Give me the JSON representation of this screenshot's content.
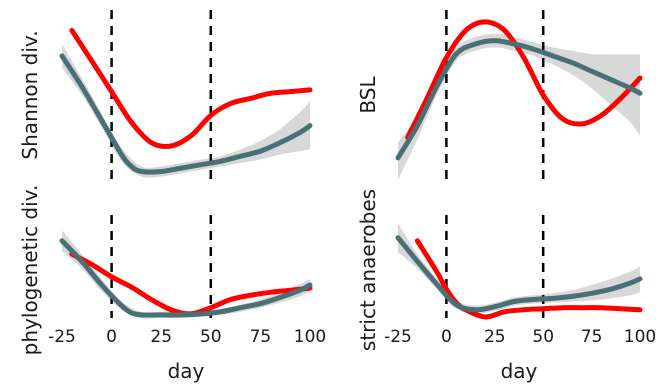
{
  "chart_data": [
    {
      "type": "line",
      "panel": "top-left",
      "ylabel": "Shannon div.",
      "xlim": [
        -25,
        100
      ],
      "vlines": [
        0,
        50
      ],
      "series": [
        {
          "color": "#ff0000",
          "x": [
            -20,
            -10,
            0,
            10,
            20,
            30,
            40,
            50,
            60,
            70,
            80,
            90,
            100
          ],
          "y": [
            0.88,
            0.7,
            0.52,
            0.34,
            0.22,
            0.2,
            0.26,
            0.38,
            0.45,
            0.48,
            0.51,
            0.52,
            0.53
          ]
        },
        {
          "color": "#4a7075",
          "x": [
            -25,
            -15,
            -5,
            5,
            10,
            15,
            25,
            35,
            45,
            55,
            65,
            75,
            85,
            95,
            100
          ],
          "y": [
            0.73,
            0.55,
            0.35,
            0.15,
            0.08,
            0.05,
            0.05,
            0.07,
            0.09,
            0.11,
            0.14,
            0.17,
            0.22,
            0.28,
            0.32
          ]
        }
      ],
      "band": {
        "x": [
          -25,
          -15,
          -5,
          5,
          15,
          25,
          35,
          45,
          55,
          65,
          75,
          85,
          95,
          100
        ],
        "upper": [
          0.8,
          0.6,
          0.39,
          0.19,
          0.08,
          0.08,
          0.1,
          0.12,
          0.14,
          0.18,
          0.23,
          0.3,
          0.4,
          0.46
        ],
        "lower": [
          0.66,
          0.5,
          0.31,
          0.11,
          0.02,
          0.02,
          0.04,
          0.06,
          0.08,
          0.1,
          0.12,
          0.15,
          0.17,
          0.18
        ]
      }
    },
    {
      "type": "line",
      "panel": "top-right",
      "ylabel": "BSL",
      "xlim": [
        -25,
        100
      ],
      "vlines": [
        0,
        50
      ],
      "series": [
        {
          "color": "#ff0000",
          "x": [
            -20,
            -10,
            0,
            10,
            20,
            30,
            40,
            50,
            60,
            70,
            80,
            90,
            100
          ],
          "y": [
            0.25,
            0.48,
            0.72,
            0.88,
            0.93,
            0.88,
            0.72,
            0.5,
            0.36,
            0.33,
            0.38,
            0.48,
            0.6
          ]
        },
        {
          "color": "#4a7075",
          "x": [
            -25,
            -15,
            -5,
            5,
            15,
            25,
            35,
            45,
            55,
            65,
            75,
            85,
            95,
            100
          ],
          "y": [
            0.13,
            0.32,
            0.55,
            0.74,
            0.8,
            0.82,
            0.8,
            0.77,
            0.73,
            0.69,
            0.64,
            0.59,
            0.54,
            0.51
          ]
        }
      ],
      "band": {
        "x": [
          -25,
          -15,
          -5,
          5,
          15,
          25,
          35,
          45,
          55,
          65,
          75,
          85,
          95,
          100
        ],
        "upper": [
          0.22,
          0.38,
          0.6,
          0.78,
          0.84,
          0.86,
          0.84,
          0.81,
          0.78,
          0.76,
          0.74,
          0.74,
          0.74,
          0.74
        ],
        "lower": [
          0.0,
          0.24,
          0.5,
          0.7,
          0.76,
          0.78,
          0.76,
          0.73,
          0.68,
          0.62,
          0.54,
          0.44,
          0.34,
          0.26
        ]
      }
    },
    {
      "type": "line",
      "panel": "bottom-left",
      "ylabel": "phylogenetic div.",
      "xlabel": "day",
      "xlim": [
        -25,
        100
      ],
      "xticks": [
        "-25",
        "0",
        "25",
        "50",
        "75",
        "100"
      ],
      "vlines": [
        0,
        50
      ],
      "series": [
        {
          "color": "#ff0000",
          "x": [
            -20,
            -10,
            0,
            10,
            20,
            30,
            40,
            50,
            60,
            70,
            80,
            90,
            100
          ],
          "y": [
            0.62,
            0.52,
            0.4,
            0.3,
            0.18,
            0.08,
            0.04,
            0.1,
            0.18,
            0.22,
            0.25,
            0.27,
            0.29
          ]
        },
        {
          "color": "#4a7075",
          "x": [
            -25,
            -15,
            -5,
            5,
            10,
            15,
            25,
            35,
            45,
            55,
            65,
            75,
            85,
            95,
            100
          ],
          "y": [
            0.75,
            0.55,
            0.32,
            0.12,
            0.05,
            0.03,
            0.03,
            0.03,
            0.04,
            0.06,
            0.1,
            0.14,
            0.2,
            0.27,
            0.32
          ]
        }
      ],
      "band": {
        "x": [
          -25,
          -15,
          -5,
          5,
          15,
          25,
          35,
          45,
          55,
          65,
          75,
          85,
          95,
          100
        ],
        "upper": [
          0.85,
          0.62,
          0.38,
          0.16,
          0.06,
          0.06,
          0.06,
          0.07,
          0.09,
          0.13,
          0.18,
          0.25,
          0.33,
          0.38
        ],
        "lower": [
          0.65,
          0.48,
          0.26,
          0.08,
          0.0,
          0.0,
          0.0,
          0.01,
          0.03,
          0.06,
          0.1,
          0.15,
          0.21,
          0.26
        ]
      }
    },
    {
      "type": "line",
      "panel": "bottom-right",
      "ylabel": "strict anaerobes",
      "xlabel": "day",
      "xlim": [
        -25,
        100
      ],
      "xticks": [
        "-25",
        "0",
        "25",
        "50",
        "75",
        "100"
      ],
      "vlines": [
        0,
        50
      ],
      "series": [
        {
          "color": "#ff0000",
          "x": [
            -15,
            -5,
            0,
            5,
            10,
            20,
            30,
            40,
            50,
            60,
            70,
            80,
            90,
            100
          ],
          "y": [
            0.75,
            0.45,
            0.28,
            0.15,
            0.08,
            0.01,
            0.06,
            0.08,
            0.09,
            0.1,
            0.1,
            0.1,
            0.09,
            0.08
          ]
        },
        {
          "color": "#4a7075",
          "x": [
            -25,
            -15,
            -5,
            5,
            15,
            25,
            35,
            45,
            55,
            65,
            75,
            85,
            95,
            100
          ],
          "y": [
            0.78,
            0.55,
            0.33,
            0.13,
            0.08,
            0.11,
            0.16,
            0.18,
            0.19,
            0.21,
            0.24,
            0.28,
            0.34,
            0.38
          ]
        }
      ],
      "band": {
        "x": [
          -25,
          -15,
          -5,
          5,
          15,
          25,
          35,
          45,
          55,
          65,
          75,
          85,
          95,
          100
        ],
        "upper": [
          0.92,
          0.62,
          0.38,
          0.17,
          0.12,
          0.15,
          0.2,
          0.22,
          0.24,
          0.27,
          0.32,
          0.38,
          0.45,
          0.5
        ],
        "lower": [
          0.64,
          0.48,
          0.28,
          0.09,
          0.04,
          0.07,
          0.12,
          0.14,
          0.15,
          0.16,
          0.17,
          0.19,
          0.22,
          0.25
        ]
      }
    }
  ]
}
